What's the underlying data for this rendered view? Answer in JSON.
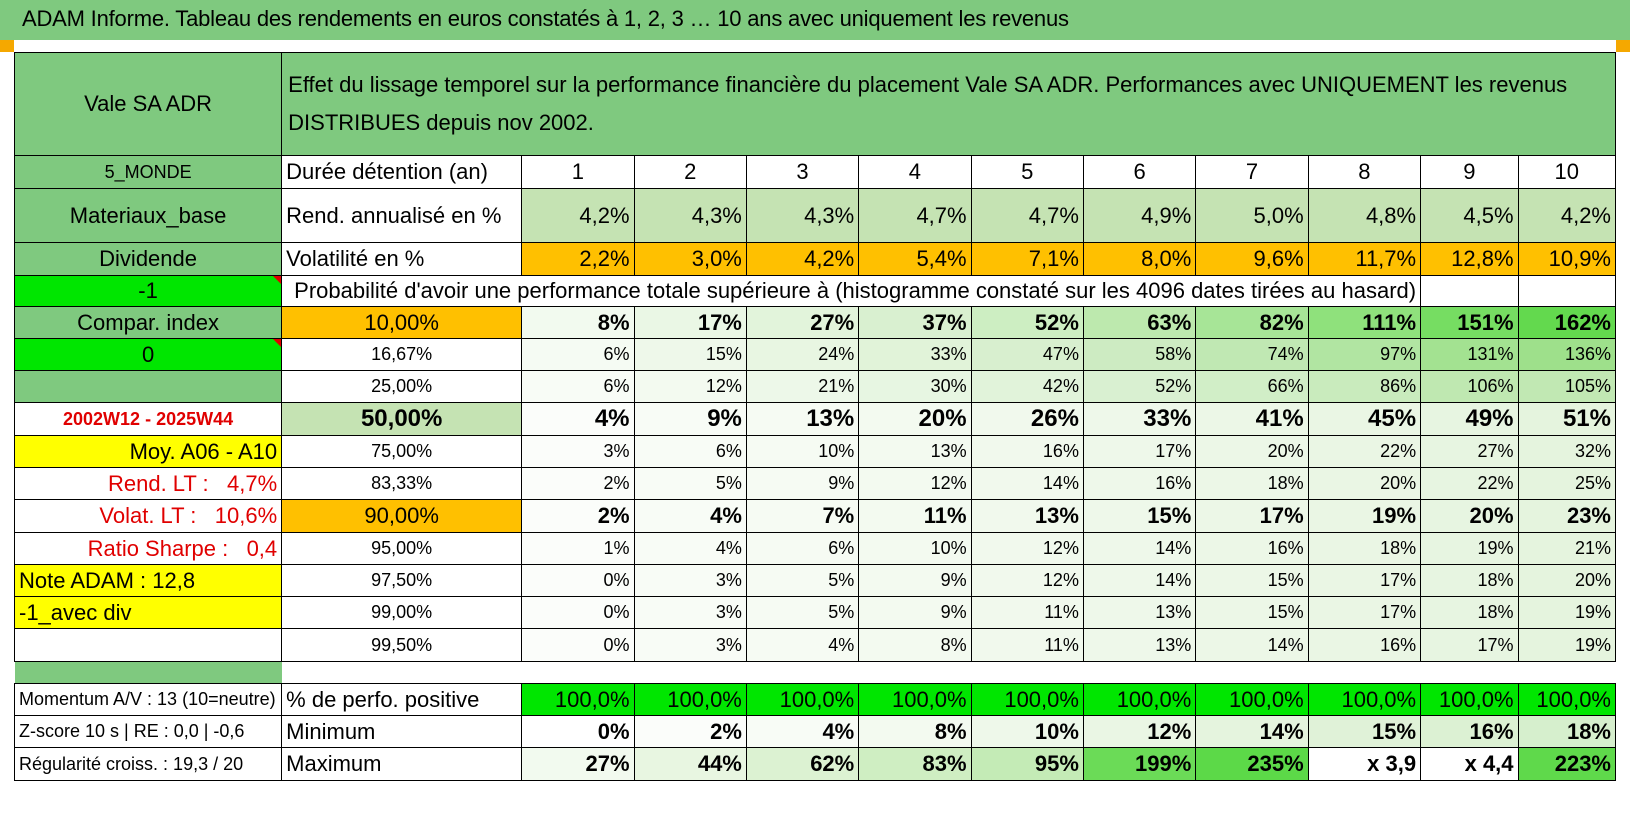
{
  "title": "ADAM Informe. Tableau des rendements en euros constatés à 1, 2, 3 … 10 ans avec uniquement les revenus",
  "header": {
    "name": "Vale SA ADR",
    "description": "Effet du lissage temporel sur la performance financière du placement Vale SA ADR. Performances avec UNIQUEMENT les revenus DISTRIBUES depuis nov 2002."
  },
  "left_labels": {
    "region": "5_MONDE",
    "sector": "Materiaux_base",
    "mode": "Dividende",
    "param1": "-1",
    "compar": "Compar. index",
    "param2": "0",
    "period": "2002W12 - 2025W44",
    "moy": "Moy. A06 - A10",
    "rend_lt_label": "Rend. LT :",
    "rend_lt_value": "4,7%",
    "volat_lt_label": "Volat. LT :",
    "volat_lt_value": "10,6%",
    "sharpe_label": "Ratio Sharpe :",
    "sharpe_value": "0,4",
    "note": "Note ADAM : 12,8",
    "avec_div": "-1_avec div"
  },
  "years_label": "Durée détention (an)",
  "years": [
    "1",
    "2",
    "3",
    "4",
    "5",
    "6",
    "7",
    "8",
    "9",
    "10"
  ],
  "rend_label": "Rend. annualisé en %",
  "rend": [
    "4,2%",
    "4,3%",
    "4,3%",
    "4,7%",
    "4,7%",
    "4,9%",
    "5,0%",
    "4,8%",
    "4,5%",
    "4,2%"
  ],
  "vol_label": "Volatilité en %",
  "vol": [
    "2,2%",
    "3,0%",
    "4,2%",
    "5,4%",
    "7,1%",
    "8,0%",
    "9,6%",
    "11,7%",
    "12,8%",
    "10,9%"
  ],
  "prob_label": "Probabilité d'avoir une performance totale supérieure à (histogramme constaté sur les 4096 dates tirées au hasard)",
  "quantiles": [
    {
      "p": "10,00%",
      "v": [
        "8%",
        "17%",
        "27%",
        "37%",
        "52%",
        "63%",
        "82%",
        "111%",
        "151%",
        "162%"
      ]
    },
    {
      "p": "16,67%",
      "v": [
        "6%",
        "15%",
        "24%",
        "33%",
        "47%",
        "58%",
        "74%",
        "97%",
        "131%",
        "136%"
      ]
    },
    {
      "p": "25,00%",
      "v": [
        "6%",
        "12%",
        "21%",
        "30%",
        "42%",
        "52%",
        "66%",
        "86%",
        "106%",
        "105%"
      ]
    },
    {
      "p": "50,00%",
      "v": [
        "4%",
        "9%",
        "13%",
        "20%",
        "26%",
        "33%",
        "41%",
        "45%",
        "49%",
        "51%"
      ]
    },
    {
      "p": "75,00%",
      "v": [
        "3%",
        "6%",
        "10%",
        "13%",
        "16%",
        "17%",
        "20%",
        "22%",
        "27%",
        "32%"
      ]
    },
    {
      "p": "83,33%",
      "v": [
        "2%",
        "5%",
        "9%",
        "12%",
        "14%",
        "16%",
        "18%",
        "20%",
        "22%",
        "25%"
      ]
    },
    {
      "p": "90,00%",
      "v": [
        "2%",
        "4%",
        "7%",
        "11%",
        "13%",
        "15%",
        "17%",
        "19%",
        "20%",
        "23%"
      ]
    },
    {
      "p": "95,00%",
      "v": [
        "1%",
        "4%",
        "6%",
        "10%",
        "12%",
        "14%",
        "16%",
        "18%",
        "19%",
        "21%"
      ]
    },
    {
      "p": "97,50%",
      "v": [
        "0%",
        "3%",
        "5%",
        "9%",
        "12%",
        "14%",
        "15%",
        "17%",
        "18%",
        "20%"
      ]
    },
    {
      "p": "99,00%",
      "v": [
        "0%",
        "3%",
        "5%",
        "9%",
        "11%",
        "13%",
        "15%",
        "17%",
        "18%",
        "19%"
      ]
    },
    {
      "p": "99,50%",
      "v": [
        "0%",
        "3%",
        "4%",
        "8%",
        "11%",
        "13%",
        "14%",
        "16%",
        "17%",
        "19%"
      ]
    }
  ],
  "bottom": {
    "momentum": "Momentum A/V : 13 (10=neutre)",
    "zscore": "Z-score 10 s | RE : 0,0 | -0,6",
    "regularite": "Régularité croiss. : 19,3 / 20",
    "pos_label": "% de perfo. positive",
    "pos": [
      "100,0%",
      "100,0%",
      "100,0%",
      "100,0%",
      "100,0%",
      "100,0%",
      "100,0%",
      "100,0%",
      "100,0%",
      "100,0%"
    ],
    "min_label": "Minimum",
    "min": [
      "0%",
      "2%",
      "4%",
      "8%",
      "10%",
      "12%",
      "14%",
      "15%",
      "16%",
      "18%"
    ],
    "max_label": "Maximum",
    "max": [
      "27%",
      "44%",
      "62%",
      "83%",
      "95%",
      "199%",
      "235%",
      "x 3,9",
      "x 4,4",
      "223%"
    ]
  },
  "colors": {
    "header_green": "#7fc97f",
    "light_green": "#c5e3b3",
    "orange": "#ffc000",
    "bright_green": "#00e600",
    "yellow": "#ffff00",
    "red_text": "#e00000"
  }
}
